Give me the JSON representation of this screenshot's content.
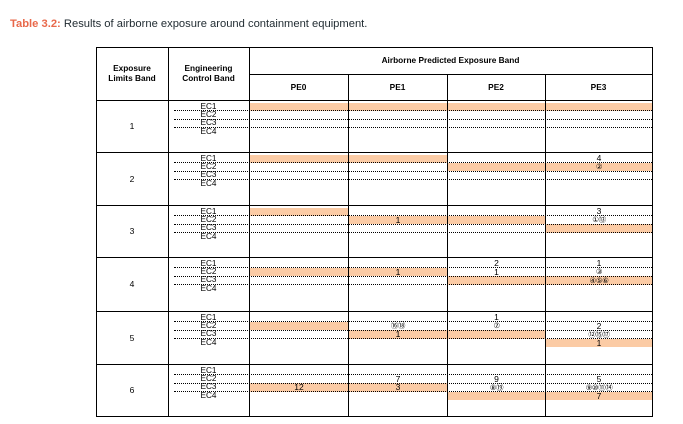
{
  "caption": {
    "label": "Table 3.2:",
    "text": " Results of airborne exposure around containment equipment."
  },
  "table": {
    "header": {
      "exposure_limits_band": "Exposure\nLimits Band",
      "engineering_control_band": "Engineering\nControl Band",
      "airborne_band": "Airborne Predicted Exposure Band",
      "pe_columns": [
        "PE0",
        "PE1",
        "PE2",
        "PE3"
      ]
    },
    "groups": [
      {
        "band": "1",
        "rows": [
          {
            "ec": "EC1",
            "cells": [
              {
                "hl": true,
                "v": ""
              },
              {
                "hl": true,
                "v": ""
              },
              {
                "hl": true,
                "v": ""
              },
              {
                "hl": true,
                "v": ""
              }
            ]
          },
          {
            "ec": "EC2",
            "cells": [
              {
                "hl": false,
                "v": ""
              },
              {
                "hl": false,
                "v": ""
              },
              {
                "hl": false,
                "v": ""
              },
              {
                "hl": false,
                "v": ""
              }
            ]
          },
          {
            "ec": "EC3",
            "cells": [
              {
                "hl": false,
                "v": ""
              },
              {
                "hl": false,
                "v": ""
              },
              {
                "hl": false,
                "v": ""
              },
              {
                "hl": false,
                "v": ""
              }
            ]
          },
          {
            "ec": "EC4",
            "cells": [
              {
                "hl": false,
                "v": ""
              },
              {
                "hl": false,
                "v": ""
              },
              {
                "hl": false,
                "v": ""
              },
              {
                "hl": false,
                "v": ""
              }
            ]
          }
        ]
      },
      {
        "band": "2",
        "rows": [
          {
            "ec": "EC1",
            "cells": [
              {
                "hl": true,
                "v": ""
              },
              {
                "hl": true,
                "v": ""
              },
              {
                "hl": false,
                "v": ""
              },
              {
                "hl": false,
                "v": "4"
              }
            ]
          },
          {
            "ec": "EC2",
            "cells": [
              {
                "hl": false,
                "v": ""
              },
              {
                "hl": false,
                "v": ""
              },
              {
                "hl": true,
                "v": ""
              },
              {
                "hl": true,
                "v": "②",
                "circ": true
              }
            ]
          },
          {
            "ec": "EC3",
            "cells": [
              {
                "hl": false,
                "v": ""
              },
              {
                "hl": false,
                "v": ""
              },
              {
                "hl": false,
                "v": ""
              },
              {
                "hl": false,
                "v": ""
              }
            ]
          },
          {
            "ec": "EC4",
            "cells": [
              {
                "hl": false,
                "v": ""
              },
              {
                "hl": false,
                "v": ""
              },
              {
                "hl": false,
                "v": ""
              },
              {
                "hl": false,
                "v": ""
              }
            ]
          }
        ]
      },
      {
        "band": "3",
        "rows": [
          {
            "ec": "EC1",
            "cells": [
              {
                "hl": true,
                "v": ""
              },
              {
                "hl": false,
                "v": ""
              },
              {
                "hl": false,
                "v": ""
              },
              {
                "hl": false,
                "v": "3"
              }
            ]
          },
          {
            "ec": "EC2",
            "cells": [
              {
                "hl": false,
                "v": ""
              },
              {
                "hl": true,
                "v": "1"
              },
              {
                "hl": true,
                "v": ""
              },
              {
                "hl": false,
                "v": "①⑬",
                "circ": true
              }
            ]
          },
          {
            "ec": "EC3",
            "cells": [
              {
                "hl": false,
                "v": ""
              },
              {
                "hl": false,
                "v": ""
              },
              {
                "hl": false,
                "v": ""
              },
              {
                "hl": true,
                "v": ""
              }
            ]
          },
          {
            "ec": "EC4",
            "cells": [
              {
                "hl": false,
                "v": ""
              },
              {
                "hl": false,
                "v": ""
              },
              {
                "hl": false,
                "v": ""
              },
              {
                "hl": false,
                "v": ""
              }
            ]
          }
        ]
      },
      {
        "band": "4",
        "rows": [
          {
            "ec": "EC1",
            "cells": [
              {
                "hl": false,
                "v": ""
              },
              {
                "hl": false,
                "v": ""
              },
              {
                "hl": false,
                "v": "2"
              },
              {
                "hl": false,
                "v": "1"
              }
            ]
          },
          {
            "ec": "EC2",
            "cells": [
              {
                "hl": true,
                "v": ""
              },
              {
                "hl": true,
                "v": "1"
              },
              {
                "hl": false,
                "v": "1"
              },
              {
                "hl": false,
                "v": "③",
                "circ": true
              }
            ]
          },
          {
            "ec": "EC3",
            "cells": [
              {
                "hl": false,
                "v": ""
              },
              {
                "hl": false,
                "v": ""
              },
              {
                "hl": true,
                "v": ""
              },
              {
                "hl": true,
                "v": "④⑤⑥",
                "circ": true
              }
            ]
          },
          {
            "ec": "EC4",
            "cells": [
              {
                "hl": false,
                "v": ""
              },
              {
                "hl": false,
                "v": ""
              },
              {
                "hl": false,
                "v": ""
              },
              {
                "hl": false,
                "v": ""
              }
            ]
          }
        ]
      },
      {
        "band": "5",
        "rows": [
          {
            "ec": "EC1",
            "cells": [
              {
                "hl": false,
                "v": ""
              },
              {
                "hl": false,
                "v": ""
              },
              {
                "hl": false,
                "v": "1"
              },
              {
                "hl": false,
                "v": ""
              }
            ]
          },
          {
            "ec": "EC2",
            "cells": [
              {
                "hl": true,
                "v": ""
              },
              {
                "hl": false,
                "v": "⑯⑱",
                "circ": true
              },
              {
                "hl": false,
                "v": "⑦",
                "circ": true
              },
              {
                "hl": false,
                "v": "2"
              }
            ]
          },
          {
            "ec": "EC3",
            "cells": [
              {
                "hl": false,
                "v": ""
              },
              {
                "hl": true,
                "v": "1"
              },
              {
                "hl": true,
                "v": ""
              },
              {
                "hl": false,
                "v": "⑫⑮⑰",
                "circ": true
              }
            ]
          },
          {
            "ec": "EC4",
            "cells": [
              {
                "hl": false,
                "v": ""
              },
              {
                "hl": false,
                "v": ""
              },
              {
                "hl": false,
                "v": ""
              },
              {
                "hl": true,
                "v": "1"
              }
            ]
          }
        ]
      },
      {
        "band": "6",
        "rows": [
          {
            "ec": "EC1",
            "cells": [
              {
                "hl": false,
                "v": ""
              },
              {
                "hl": false,
                "v": ""
              },
              {
                "hl": false,
                "v": ""
              },
              {
                "hl": false,
                "v": ""
              }
            ]
          },
          {
            "ec": "EC2",
            "cells": [
              {
                "hl": false,
                "v": ""
              },
              {
                "hl": false,
                "v": "7"
              },
              {
                "hl": false,
                "v": "9"
              },
              {
                "hl": false,
                "v": "5"
              }
            ]
          },
          {
            "ec": "EC3",
            "cells": [
              {
                "hl": true,
                "v": "12"
              },
              {
                "hl": true,
                "v": "3"
              },
              {
                "hl": false,
                "v": "⑧⑲",
                "circ": true
              },
              {
                "hl": false,
                "v": "⑨⑩⑪⑭",
                "circ": true
              }
            ]
          },
          {
            "ec": "EC4",
            "cells": [
              {
                "hl": false,
                "v": ""
              },
              {
                "hl": false,
                "v": ""
              },
              {
                "hl": true,
                "v": ""
              },
              {
                "hl": true,
                "v": "7"
              }
            ]
          }
        ]
      }
    ]
  }
}
